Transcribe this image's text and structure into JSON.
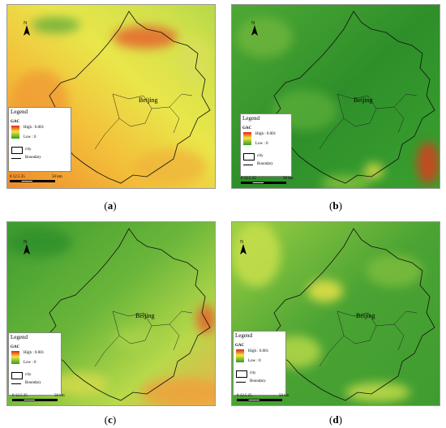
{
  "panels": [
    {
      "id": "a",
      "caption": "a",
      "city": "Beijing",
      "palette": "warm"
    },
    {
      "id": "b",
      "caption": "b",
      "city": "Beijing",
      "palette": "green"
    },
    {
      "id": "c",
      "caption": "c",
      "city": "Beijing",
      "palette": "mix"
    },
    {
      "id": "d",
      "caption": "d",
      "city": "Beijing",
      "palette": "yellowgreen"
    }
  ],
  "legend": {
    "title": "Legend",
    "variable": "GAC",
    "high": "High : 0.001",
    "low": "Low : 0",
    "city": "city",
    "boundary": "Boundary"
  },
  "scale": {
    "ticks": "0  12.5  25",
    "unit": "50 km"
  },
  "north": "N",
  "colors": {
    "high": "#e0201b",
    "mid": "#f6e63a",
    "low": "#2f9b2c"
  }
}
